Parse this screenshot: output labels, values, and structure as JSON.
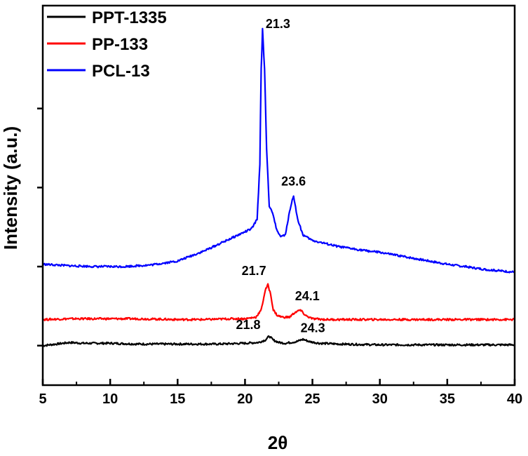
{
  "chart_data": {
    "type": "line",
    "xlabel": "2θ",
    "ylabel": "Intensity (a.u.)",
    "xlim": [
      5,
      40
    ],
    "ylim": [
      -0.5,
      4.0
    ],
    "x_ticks": [
      5,
      10,
      15,
      20,
      25,
      30,
      35,
      40
    ],
    "y_ticks": [
      0,
      1,
      2,
      3
    ],
    "y_tick_labels_shown": false,
    "grid": false,
    "legend": "top-left",
    "series": [
      {
        "name": "PPT-1335",
        "color": "#000000",
        "points": [
          [
            5,
            0.0
          ],
          [
            6,
            0.02
          ],
          [
            7,
            0.04
          ],
          [
            8,
            0.03
          ],
          [
            10,
            0.03
          ],
          [
            12,
            0.02
          ],
          [
            14,
            0.02
          ],
          [
            16,
            0.02
          ],
          [
            18,
            0.02
          ],
          [
            20,
            0.03
          ],
          [
            21,
            0.04
          ],
          [
            21.5,
            0.07
          ],
          [
            21.8,
            0.12
          ],
          [
            22.1,
            0.07
          ],
          [
            22.5,
            0.04
          ],
          [
            23,
            0.03
          ],
          [
            23.8,
            0.05
          ],
          [
            24.3,
            0.08
          ],
          [
            24.8,
            0.05
          ],
          [
            25.5,
            0.03
          ],
          [
            27,
            0.02
          ],
          [
            30,
            0.01
          ],
          [
            33,
            0.01
          ],
          [
            36,
            0.01
          ],
          [
            40,
            0.01
          ]
        ]
      },
      {
        "name": "PP-133",
        "color": "#ff0000",
        "points": [
          [
            5,
            0.33
          ],
          [
            7,
            0.34
          ],
          [
            10,
            0.34
          ],
          [
            12,
            0.34
          ],
          [
            15,
            0.33
          ],
          [
            17,
            0.33
          ],
          [
            19,
            0.34
          ],
          [
            20,
            0.34
          ],
          [
            20.8,
            0.36
          ],
          [
            21.2,
            0.45
          ],
          [
            21.5,
            0.7
          ],
          [
            21.7,
            0.77
          ],
          [
            21.9,
            0.65
          ],
          [
            22.1,
            0.45
          ],
          [
            22.4,
            0.38
          ],
          [
            22.8,
            0.36
          ],
          [
            23.3,
            0.36
          ],
          [
            23.7,
            0.42
          ],
          [
            24.1,
            0.45
          ],
          [
            24.5,
            0.38
          ],
          [
            25,
            0.34
          ],
          [
            26,
            0.33
          ],
          [
            30,
            0.33
          ],
          [
            35,
            0.33
          ],
          [
            40,
            0.33
          ]
        ]
      },
      {
        "name": "PCL-13",
        "color": "#0000ff",
        "points": [
          [
            5,
            1.03
          ],
          [
            7,
            1.01
          ],
          [
            9,
            1.0
          ],
          [
            11,
            1.0
          ],
          [
            13,
            1.02
          ],
          [
            15,
            1.07
          ],
          [
            17,
            1.2
          ],
          [
            18.5,
            1.32
          ],
          [
            19.5,
            1.4
          ],
          [
            20.5,
            1.48
          ],
          [
            20.9,
            1.6
          ],
          [
            21.1,
            2.3
          ],
          [
            21.2,
            3.5
          ],
          [
            21.3,
            4.0
          ],
          [
            21.45,
            3.5
          ],
          [
            21.6,
            2.5
          ],
          [
            21.8,
            1.75
          ],
          [
            22.0,
            1.7
          ],
          [
            22.3,
            1.5
          ],
          [
            22.6,
            1.38
          ],
          [
            23.0,
            1.4
          ],
          [
            23.3,
            1.7
          ],
          [
            23.6,
            1.9
          ],
          [
            23.9,
            1.6
          ],
          [
            24.3,
            1.4
          ],
          [
            25,
            1.33
          ],
          [
            27,
            1.25
          ],
          [
            29,
            1.2
          ],
          [
            30,
            1.18
          ],
          [
            32,
            1.12
          ],
          [
            35,
            1.03
          ],
          [
            38,
            0.96
          ],
          [
            40,
            0.93
          ]
        ]
      }
    ],
    "annotations": [
      {
        "text": "21.3",
        "x": 21.3,
        "y": 4.0,
        "series": "PCL-13"
      },
      {
        "text": "23.6",
        "x": 23.6,
        "y": 1.9,
        "series": "PCL-13"
      },
      {
        "text": "21.7",
        "x": 21.7,
        "y": 0.77,
        "series": "PP-133"
      },
      {
        "text": "24.1",
        "x": 24.1,
        "y": 0.45,
        "series": "PP-133"
      },
      {
        "text": "21.8",
        "x": 21.8,
        "y": 0.12,
        "series": "PPT-1335"
      },
      {
        "text": "24.3",
        "x": 24.3,
        "y": 0.08,
        "series": "PPT-1335"
      }
    ]
  }
}
